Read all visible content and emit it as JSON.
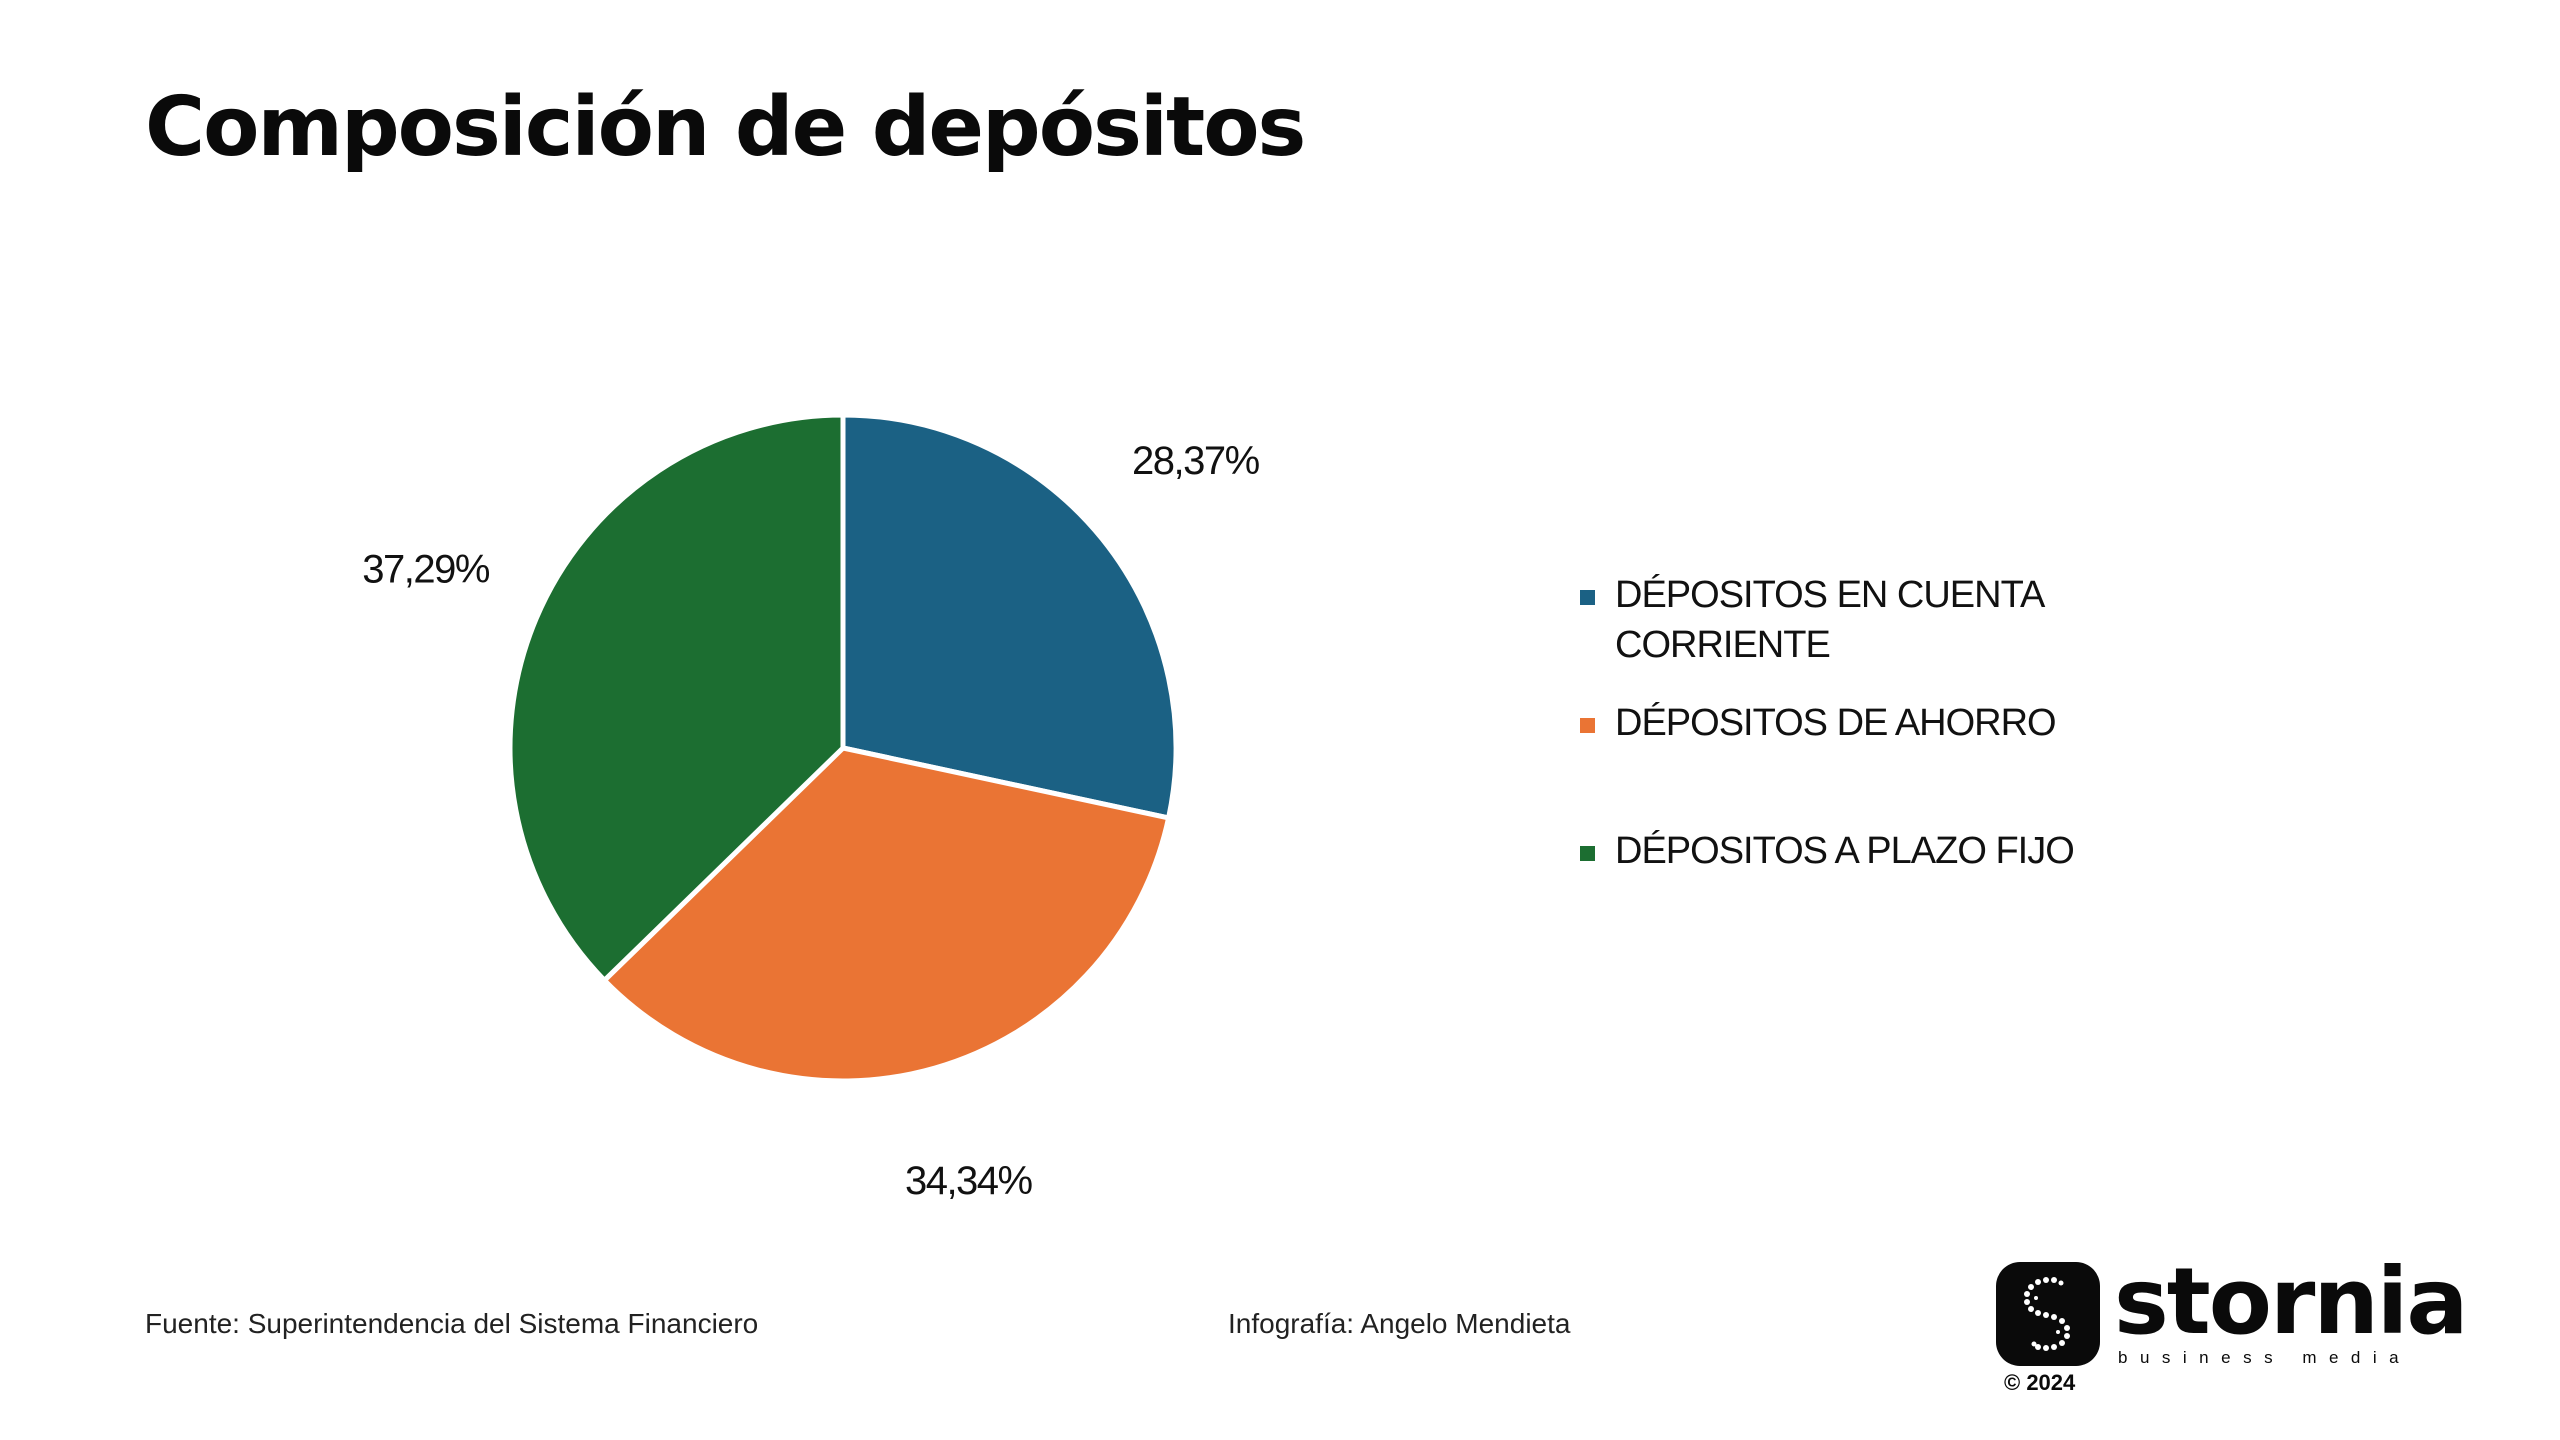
{
  "title": "Composición de depósitos",
  "chart_data": {
    "type": "pie",
    "categories": [
      "DÉPOSITOS EN CUENTA CORRIENTE",
      "DÉPOSITOS DE AHORRO",
      "DÉPOSITOS A PLAZO FIJO"
    ],
    "values": [
      28.37,
      34.34,
      37.29
    ],
    "value_labels": [
      "28,37%",
      "34,34%",
      "37,29%"
    ],
    "colors": [
      "#1b6184",
      "#ea7434",
      "#1c6e31"
    ],
    "start_angle": "12 o'clock",
    "direction": "clockwise",
    "legend_position": "right"
  },
  "legend": {
    "items": [
      {
        "label_line1": "DÉPOSITOS EN CUENTA",
        "label_line2": "CORRIENTE",
        "color": "#1b6184"
      },
      {
        "label_line1": "DÉPOSITOS DE AHORRO",
        "label_line2": "",
        "color": "#ea7434"
      },
      {
        "label_line1": "DÉPOSITOS A PLAZO FIJO",
        "label_line2": "",
        "color": "#1c6e31"
      }
    ]
  },
  "footer": {
    "source": "Fuente: Superintendencia del Sistema Financiero",
    "credit": "Infografía: Angelo Mendieta"
  },
  "logo": {
    "name": "stornia",
    "tagline": "business media",
    "year": "© 2024"
  }
}
